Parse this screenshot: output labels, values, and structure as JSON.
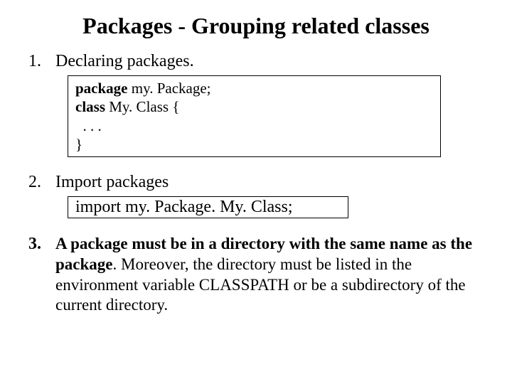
{
  "title": "Packages - Grouping related classes",
  "item1": {
    "num": "1.",
    "text": "Declaring packages."
  },
  "code1": {
    "line1_bold": "package",
    "line1_rest": " my. Package;",
    "line2_bold": "class",
    "line2_rest": " My. Class {",
    "line3": "  . . .",
    "line4": "}"
  },
  "item2": {
    "num": "2.",
    "text": "Import packages"
  },
  "code2": "import   my. Package. My. Class;",
  "item3": {
    "num": "3.",
    "text_bold": "A package must be in a directory with the same name as the package",
    "text_rest": ". Moreover, the directory must be listed in the environment variable CLASSPATH or be a subdirectory of the current directory."
  },
  "colors": {
    "background": "#ffffff",
    "text": "#000000",
    "border": "#000000"
  },
  "fonts": {
    "family": "Times New Roman",
    "title_size": 32,
    "body_size": 24,
    "code_size": 21
  }
}
